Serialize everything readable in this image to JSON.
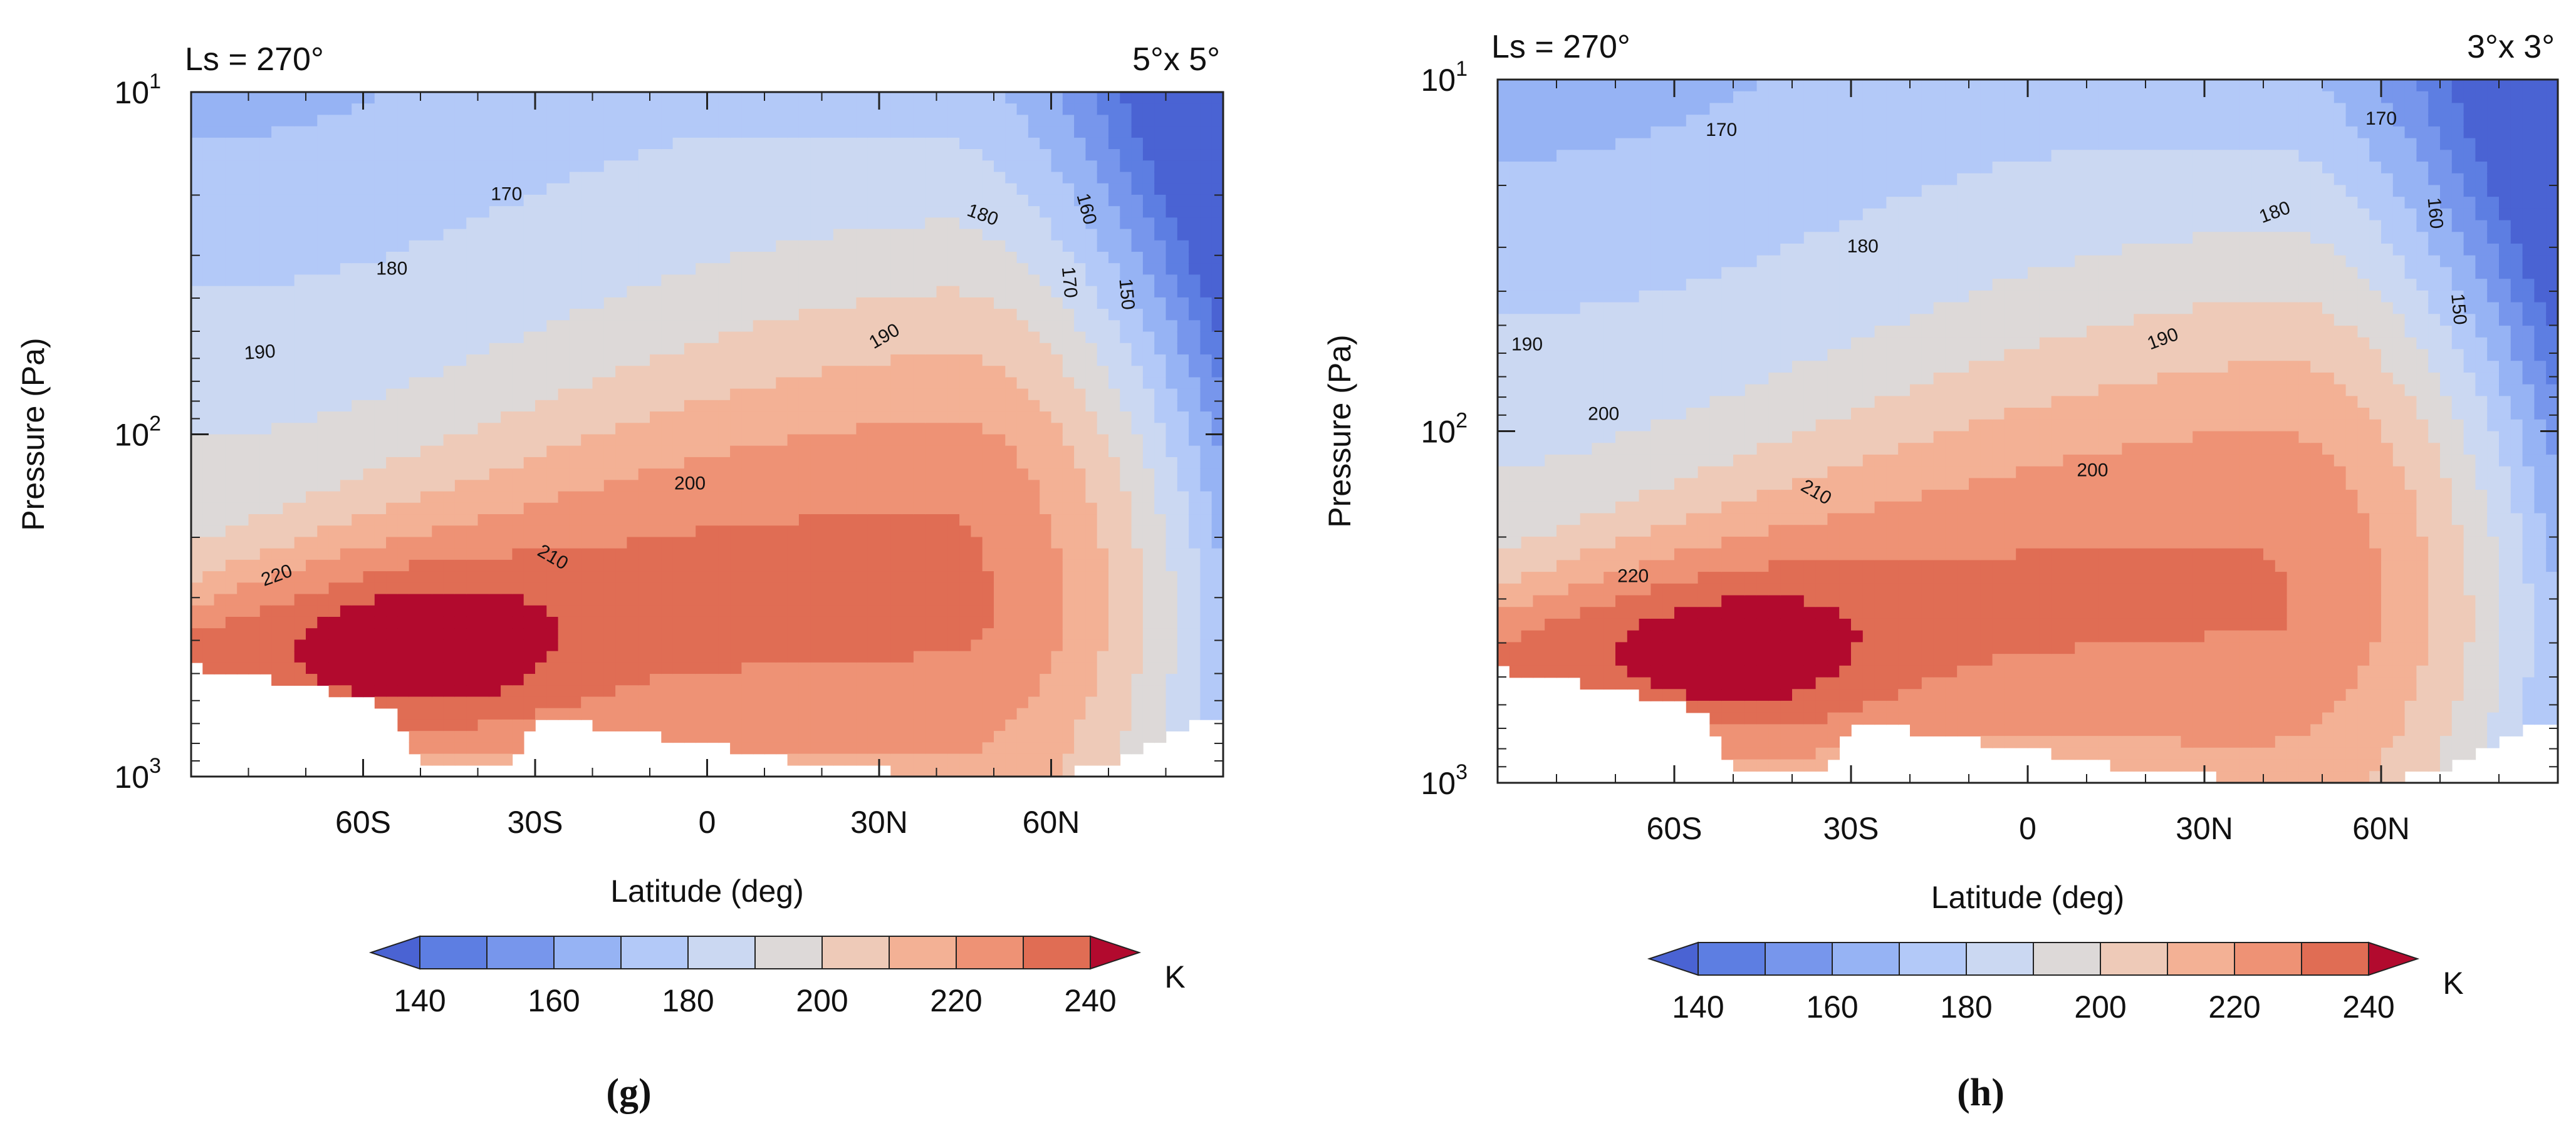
{
  "colors": {
    "levels": [
      "#4a63d3",
      "#5d7ee2",
      "#7796ec",
      "#96b3f4",
      "#b3c9f8",
      "#cbd8f2",
      "#ddd9d8",
      "#eecab8",
      "#f3b195",
      "#ee9275",
      "#e06d54",
      "#cc4a3e",
      "#b20a2e"
    ],
    "missing": "#ffffff"
  },
  "chart_data": [
    {
      "type": "contour",
      "panel_label": "(g)",
      "corner_left": "Ls = 270°",
      "corner_right": "5°x 5°",
      "xlabel": "Latitude (deg)",
      "ylabel": "Pressure (Pa)",
      "xlim": [
        -90,
        90
      ],
      "ylim": [
        1000,
        10
      ],
      "yscale": "log",
      "x_ticks": [
        -60,
        -30,
        0,
        30,
        60
      ],
      "x_tick_labels": [
        "60S",
        "30S",
        "0",
        "30N",
        "60N"
      ],
      "y_ticks": [
        10,
        100,
        1000
      ],
      "y_tick_labels": [
        "10",
        "10",
        "10"
      ],
      "y_tick_exponents": [
        "1",
        "2",
        "3"
      ],
      "units": "K",
      "contour_levels": [
        140,
        150,
        160,
        170,
        180,
        190,
        200,
        210,
        220,
        230,
        240
      ],
      "contour_labels": [
        {
          "text": "170",
          "lat": -35,
          "p": 20,
          "rot": 0
        },
        {
          "text": "180",
          "lat": -55,
          "p": 33,
          "rot": 0
        },
        {
          "text": "190",
          "lat": -78,
          "p": 58,
          "rot": -4
        },
        {
          "text": "200",
          "lat": -3,
          "p": 140,
          "rot": 0
        },
        {
          "text": "210",
          "lat": -27,
          "p": 230,
          "rot": 30
        },
        {
          "text": "220",
          "lat": -75,
          "p": 260,
          "rot": -20
        },
        {
          "text": "180",
          "lat": 48,
          "p": 23,
          "rot": 20
        },
        {
          "text": "190",
          "lat": 31,
          "p": 52,
          "rot": -30
        },
        {
          "text": "160",
          "lat": 66,
          "p": 22,
          "rot": 75
        },
        {
          "text": "170",
          "lat": 63,
          "p": 36,
          "rot": 85
        },
        {
          "text": "150",
          "lat": 73,
          "p": 39,
          "rot": 85
        }
      ]
    },
    {
      "type": "contour",
      "panel_label": "(h)",
      "corner_left": "Ls = 270°",
      "corner_right": "3°x 3°",
      "xlabel": "Latitude (deg)",
      "ylabel": "Pressure (Pa)",
      "xlim": [
        -90,
        90
      ],
      "ylim": [
        1000,
        10
      ],
      "yscale": "log",
      "x_ticks": [
        -60,
        -30,
        0,
        30,
        60
      ],
      "x_tick_labels": [
        "60S",
        "30S",
        "0",
        "30N",
        "60N"
      ],
      "y_ticks": [
        10,
        100,
        1000
      ],
      "y_tick_labels": [
        "10",
        "10",
        "10"
      ],
      "y_tick_exponents": [
        "1",
        "2",
        "3"
      ],
      "units": "K",
      "contour_levels": [
        140,
        150,
        160,
        170,
        180,
        190,
        200,
        210,
        220,
        230,
        240
      ],
      "contour_labels": [
        {
          "text": "170",
          "lat": -52,
          "p": 14,
          "rot": 0
        },
        {
          "text": "170",
          "lat": 60,
          "p": 13,
          "rot": 0
        },
        {
          "text": "180",
          "lat": -28,
          "p": 30,
          "rot": 0
        },
        {
          "text": "180",
          "lat": 42,
          "p": 24,
          "rot": -20
        },
        {
          "text": "190",
          "lat": -85,
          "p": 57,
          "rot": 0
        },
        {
          "text": "190",
          "lat": 23,
          "p": 55,
          "rot": -20
        },
        {
          "text": "200",
          "lat": -72,
          "p": 90,
          "rot": 0
        },
        {
          "text": "200",
          "lat": 11,
          "p": 130,
          "rot": 0
        },
        {
          "text": "210",
          "lat": -36,
          "p": 150,
          "rot": 30
        },
        {
          "text": "220",
          "lat": -67,
          "p": 260,
          "rot": 0
        },
        {
          "text": "160",
          "lat": 69,
          "p": 24,
          "rot": 85
        },
        {
          "text": "150",
          "lat": 73,
          "p": 45,
          "rot": 85
        }
      ]
    }
  ],
  "colorbar": {
    "boundaries": [
      140,
      150,
      160,
      170,
      180,
      190,
      200,
      210,
      220,
      230,
      240
    ],
    "tick_labels": [
      "140",
      "160",
      "180",
      "200",
      "220",
      "240"
    ],
    "units": "K",
    "extend": "both"
  }
}
